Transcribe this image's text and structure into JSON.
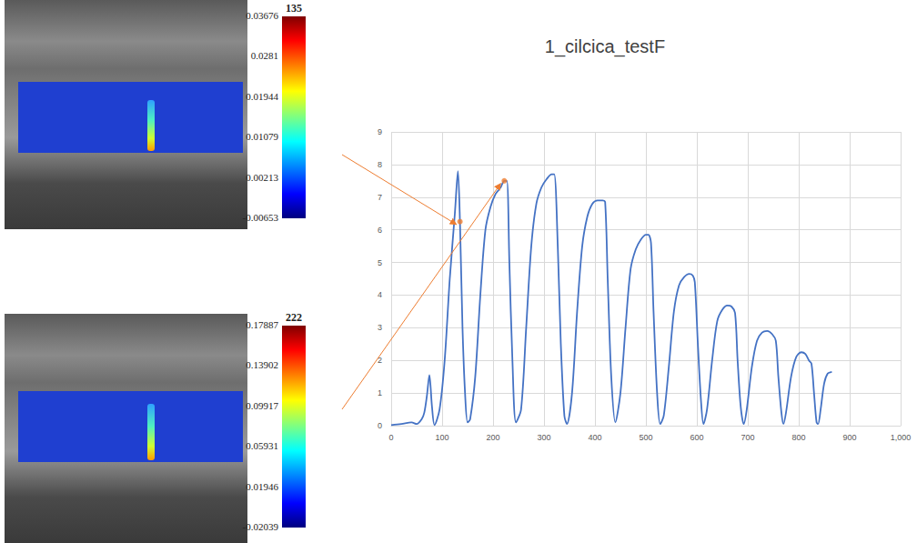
{
  "chart_data": {
    "type": "line",
    "title": "1_cilcica_testF",
    "color": "#4472c4",
    "grid": true,
    "xlim": [
      0,
      1000
    ],
    "xticks": [
      0,
      100,
      200,
      300,
      400,
      500,
      600,
      700,
      800,
      900,
      1000
    ],
    "ylim": [
      0,
      9
    ],
    "yticks": [
      0,
      1,
      2,
      3,
      4,
      5,
      6,
      7,
      8,
      9
    ],
    "x": [
      0,
      20,
      40,
      50,
      60,
      65,
      70,
      75,
      80,
      85,
      95,
      105,
      115,
      125,
      131,
      135,
      140,
      145,
      150,
      155,
      165,
      175,
      185,
      195,
      205,
      215,
      222,
      227,
      232,
      238,
      245,
      255,
      265,
      275,
      285,
      295,
      305,
      315,
      320,
      327,
      333,
      340,
      345,
      355,
      365,
      375,
      385,
      395,
      405,
      415,
      420,
      425,
      432,
      440,
      450,
      460,
      470,
      480,
      490,
      500,
      505,
      510,
      515,
      522,
      528,
      535,
      545,
      555,
      565,
      575,
      585,
      592,
      596,
      602,
      608,
      613,
      620,
      630,
      640,
      650,
      660,
      668,
      675,
      680,
      686,
      692,
      698,
      708,
      718,
      728,
      738,
      748,
      755,
      760,
      766,
      770,
      775,
      785,
      795,
      805,
      813,
      820,
      825,
      830,
      835,
      838,
      843,
      850,
      857,
      865
    ],
    "values": [
      0.02,
      0.05,
      0.1,
      0.05,
      0.2,
      0.4,
      0.9,
      1.55,
      0.6,
      0.02,
      0.5,
      2.0,
      4.5,
      6.5,
      7.8,
      6.25,
      3.0,
      1.0,
      0.1,
      0.2,
      1.5,
      4.0,
      6.0,
      6.7,
      7.1,
      7.3,
      7.5,
      7.5,
      5.0,
      2.0,
      0.1,
      0.5,
      3.0,
      5.5,
      6.8,
      7.3,
      7.55,
      7.7,
      7.7,
      5.5,
      2.5,
      0.3,
      0.05,
      1.0,
      3.5,
      5.5,
      6.4,
      6.8,
      6.9,
      6.9,
      6.85,
      4.5,
      1.5,
      0.1,
      1.0,
      3.0,
      4.8,
      5.4,
      5.7,
      5.85,
      5.85,
      5.6,
      3.5,
      1.0,
      0.05,
      0.3,
      1.8,
      3.5,
      4.3,
      4.55,
      4.65,
      4.6,
      4.4,
      2.5,
      0.8,
      0.05,
      0.5,
      2.0,
      3.2,
      3.55,
      3.68,
      3.65,
      3.45,
      2.0,
      0.6,
      0.05,
      0.5,
      1.8,
      2.6,
      2.85,
      2.9,
      2.8,
      2.6,
      1.5,
      0.4,
      0.05,
      0.4,
      1.5,
      2.1,
      2.25,
      2.2,
      2.0,
      1.9,
      1.0,
      0.1,
      0.05,
      0.5,
      1.3,
      1.6,
      1.65
    ],
    "markers": {
      "color": "#ed7d31",
      "x": [
        135,
        222
      ],
      "values": [
        6.25,
        7.5
      ]
    }
  },
  "strain_maps": [
    {
      "frame": 135,
      "range": [
        -0.00653,
        0.03676
      ],
      "ticks": [
        0.03676,
        0.0281,
        0.01944,
        0.01079,
        0.00213,
        -0.00653
      ]
    },
    {
      "frame": 222,
      "range": [
        -0.02039,
        0.17887
      ],
      "ticks": [
        0.17887,
        0.13902,
        0.09917,
        0.05931,
        0.01946,
        -0.02039
      ]
    }
  ]
}
